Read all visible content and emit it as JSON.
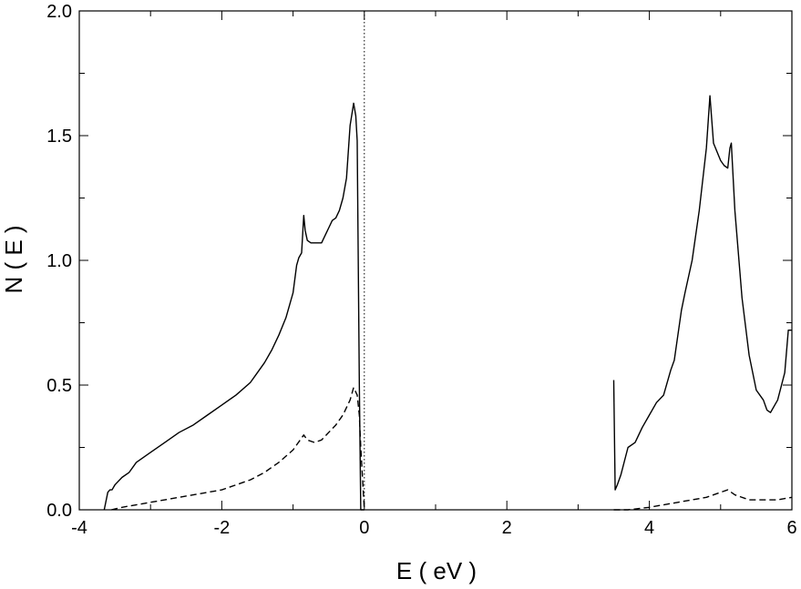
{
  "chart_data": {
    "type": "line",
    "title": "",
    "xlabel": "E ( eV )",
    "ylabel": "N ( E )",
    "xlim": [
      -4,
      6
    ],
    "ylim": [
      0,
      2.0
    ],
    "xticks": [
      -4,
      -2,
      0,
      2,
      4,
      6
    ],
    "xtick_labels": [
      "-4",
      "-2",
      "0",
      "2",
      "4",
      "6"
    ],
    "yticks": [
      0,
      0.5,
      1.0,
      1.5,
      2.0
    ],
    "ytick_labels": [
      "0.0",
      "0.5",
      "1.0",
      "1.5",
      "2.0"
    ],
    "grid": false,
    "legend": "none",
    "reference_lines": [
      {
        "axis": "x",
        "value": 0,
        "style": "dotted"
      }
    ],
    "series": [
      {
        "style": "solid",
        "color": "#000000",
        "x": [
          -3.65,
          -3.6,
          -3.57,
          -3.54,
          -3.5,
          -3.4,
          -3.3,
          -3.2,
          -3.0,
          -2.8,
          -2.6,
          -2.4,
          -2.2,
          -2.0,
          -1.8,
          -1.6,
          -1.5,
          -1.4,
          -1.3,
          -1.2,
          -1.1,
          -1.0,
          -0.95,
          -0.92,
          -0.9,
          -0.88,
          -0.85,
          -0.83,
          -0.8,
          -0.75,
          -0.7,
          -0.6,
          -0.5,
          -0.45,
          -0.4,
          -0.35,
          -0.3,
          -0.25,
          -0.2,
          -0.15,
          -0.12,
          -0.1,
          -0.07,
          -0.05,
          -0.03,
          0.0,
          3.5,
          3.52,
          3.55,
          3.6,
          3.7,
          3.8,
          3.9,
          4.0,
          4.1,
          4.2,
          4.3,
          4.35,
          4.4,
          4.45,
          4.5,
          4.6,
          4.7,
          4.8,
          4.85,
          4.9,
          5.0,
          5.05,
          5.1,
          5.13,
          5.15,
          5.2,
          5.3,
          5.4,
          5.5,
          5.6,
          5.65,
          5.7,
          5.8,
          5.9,
          5.95,
          6.0
        ],
        "y": [
          0.0,
          0.07,
          0.08,
          0.08,
          0.1,
          0.13,
          0.15,
          0.19,
          0.23,
          0.27,
          0.31,
          0.34,
          0.38,
          0.42,
          0.46,
          0.51,
          0.55,
          0.59,
          0.64,
          0.7,
          0.77,
          0.87,
          0.98,
          1.01,
          1.02,
          1.03,
          1.18,
          1.12,
          1.08,
          1.07,
          1.07,
          1.07,
          1.13,
          1.16,
          1.17,
          1.2,
          1.25,
          1.33,
          1.54,
          1.63,
          1.58,
          1.48,
          0.5,
          0.0,
          0.0,
          0.0,
          0.52,
          0.08,
          0.1,
          0.14,
          0.25,
          0.27,
          0.33,
          0.38,
          0.43,
          0.46,
          0.56,
          0.6,
          0.7,
          0.8,
          0.87,
          1.0,
          1.2,
          1.45,
          1.66,
          1.47,
          1.4,
          1.38,
          1.37,
          1.45,
          1.47,
          1.2,
          0.85,
          0.62,
          0.48,
          0.44,
          0.4,
          0.39,
          0.44,
          0.55,
          0.72,
          0.72
        ]
      },
      {
        "style": "dashed",
        "color": "#000000",
        "x": [
          -3.55,
          -3.4,
          -3.2,
          -3.0,
          -2.8,
          -2.6,
          -2.4,
          -2.2,
          -2.0,
          -1.8,
          -1.6,
          -1.4,
          -1.2,
          -1.0,
          -0.9,
          -0.85,
          -0.8,
          -0.7,
          -0.6,
          -0.5,
          -0.4,
          -0.3,
          -0.2,
          -0.15,
          -0.1,
          -0.07,
          -0.05,
          -0.02,
          0.0,
          3.5,
          3.7,
          4.0,
          4.2,
          4.4,
          4.6,
          4.8,
          4.9,
          5.0,
          5.1,
          5.2,
          5.4,
          5.6,
          5.8,
          6.0
        ],
        "y": [
          0.0,
          0.01,
          0.02,
          0.03,
          0.04,
          0.05,
          0.06,
          0.07,
          0.08,
          0.1,
          0.12,
          0.15,
          0.19,
          0.24,
          0.28,
          0.3,
          0.28,
          0.27,
          0.28,
          0.31,
          0.34,
          0.38,
          0.44,
          0.49,
          0.46,
          0.38,
          0.25,
          0.1,
          0.0,
          0.0,
          0.0,
          0.01,
          0.02,
          0.03,
          0.04,
          0.05,
          0.06,
          0.07,
          0.08,
          0.06,
          0.04,
          0.04,
          0.04,
          0.05
        ]
      }
    ]
  }
}
